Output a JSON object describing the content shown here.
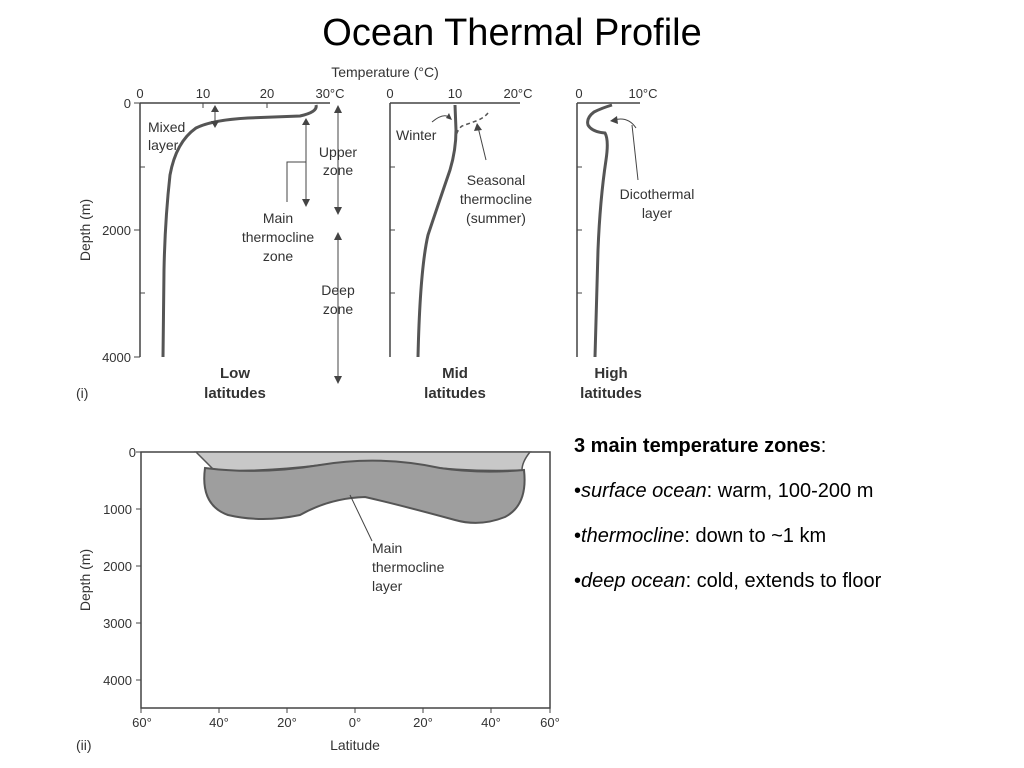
{
  "title": "Ocean Thermal Profile",
  "figure_i": {
    "temp_label": "Temperature (°C)",
    "depth_label": "Depth (m)",
    "panel_label": "(i)",
    "depth_ticks": [
      "0",
      "2000",
      "4000"
    ],
    "low": {
      "ticks": [
        "0",
        "10",
        "20",
        "30°C"
      ],
      "mixed1": "Mixed",
      "mixed2": "layer",
      "upper1": "Upper",
      "upper2": "zone",
      "main1": "Main",
      "main2": "thermocline",
      "main3": "zone",
      "deep1": "Deep",
      "deep2": "zone",
      "caption1": "Low",
      "caption2": "latitudes"
    },
    "mid": {
      "ticks": [
        "0",
        "10",
        "20°C"
      ],
      "winter": "Winter",
      "seasonal1": "Seasonal",
      "seasonal2": "thermocline",
      "seasonal3": "(summer)",
      "caption1": "Mid",
      "caption2": "latitudes"
    },
    "high": {
      "ticks": [
        "0",
        "10°C"
      ],
      "dico1": "Dicothermal",
      "dico2": "layer",
      "caption1": "High",
      "caption2": "latitudes"
    }
  },
  "figure_ii": {
    "panel_label": "(ii)",
    "depth_label": "Depth (m)",
    "depth_ticks": [
      "0",
      "1000",
      "2000",
      "3000",
      "4000"
    ],
    "lat_ticks": [
      "60°",
      "40°",
      "20°",
      "0°",
      "20°",
      "40°",
      "60°"
    ],
    "xlabel": "Latitude",
    "main1": "Main",
    "main2": "thermocline",
    "main3": "layer"
  },
  "bullets": {
    "heading": "3 main temperature zones",
    "heading_colon": ":",
    "items": [
      {
        "term": "surface ocean",
        "rest": ": warm, 100-200 m"
      },
      {
        "term": "thermocline",
        "rest": ": down to ~1 km"
      },
      {
        "term": "deep ocean",
        "rest": ": cold, extends to floor"
      }
    ]
  }
}
